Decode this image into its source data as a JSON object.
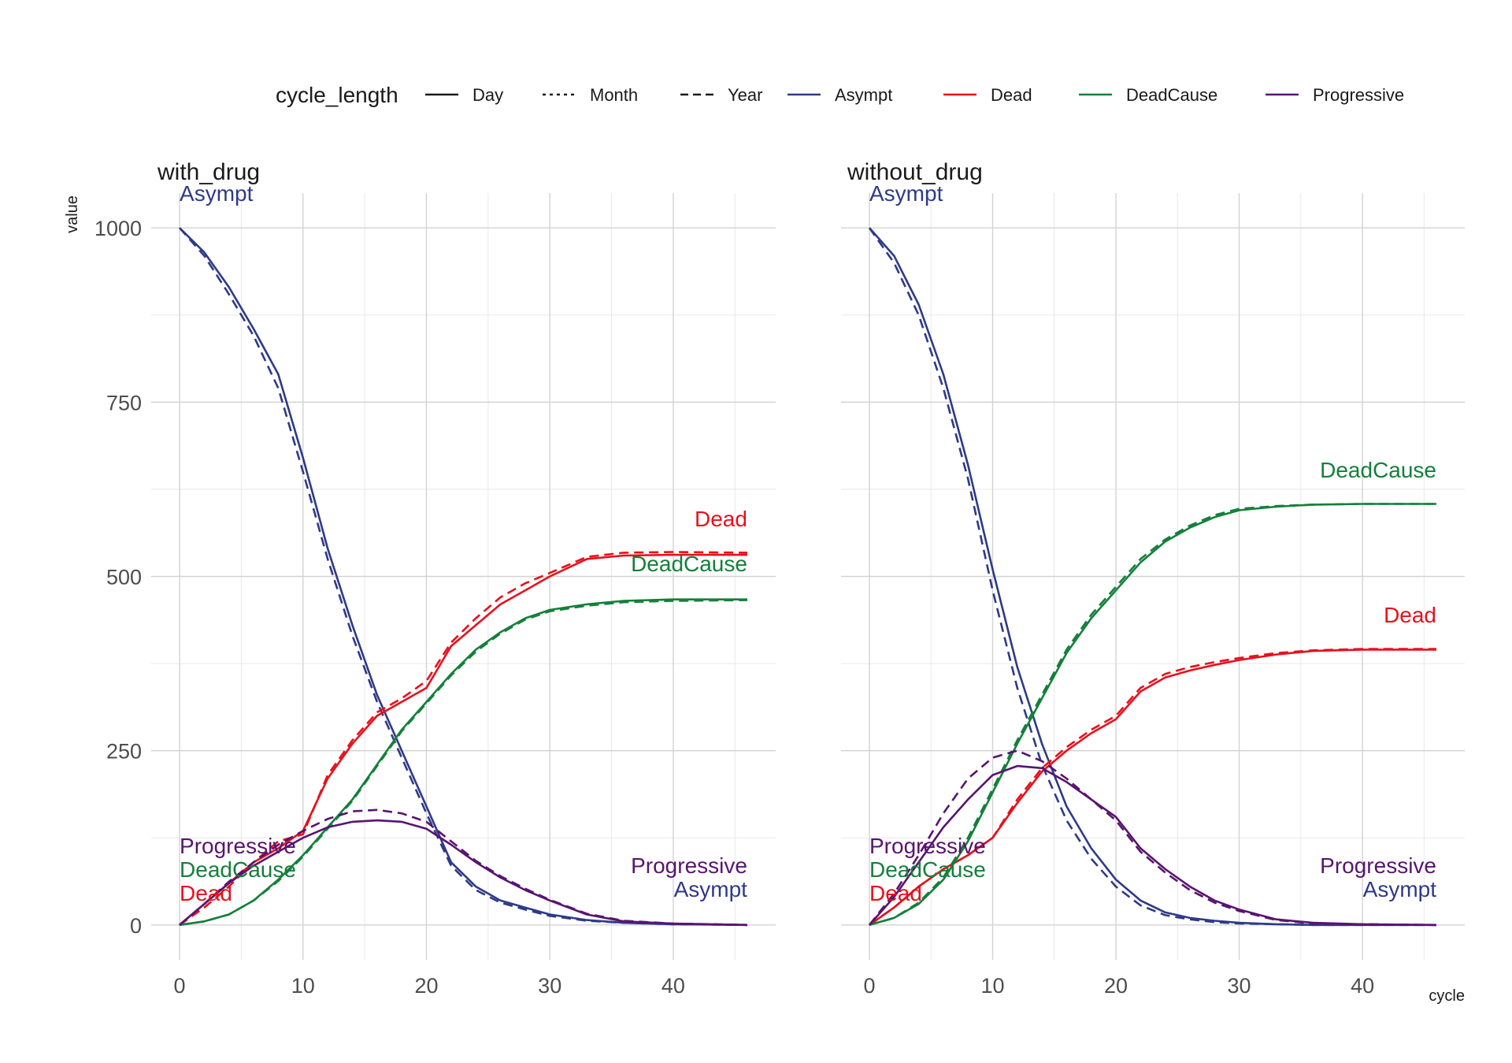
{
  "legend": {
    "linetype_title": "cycle_length",
    "linetypes": [
      {
        "label": "Day",
        "dash": "solid"
      },
      {
        "label": "Month",
        "dash": "dotted"
      },
      {
        "label": "Year",
        "dash": "dashed"
      }
    ],
    "colors": [
      {
        "label": "Asympt",
        "color": "#2e3a87"
      },
      {
        "label": "Dead",
        "color": "#e8101c"
      },
      {
        "label": "DeadCause",
        "color": "#13803a"
      },
      {
        "label": "Progressive",
        "color": "#591470"
      }
    ]
  },
  "axes": {
    "xlabel": "cycle",
    "ylabel": "value",
    "xticks": [
      0,
      10,
      20,
      30,
      40
    ],
    "yticks": [
      0,
      250,
      500,
      750,
      1000
    ],
    "xlim": [
      -2.3,
      48.3
    ],
    "ylim": [
      -50,
      1050
    ]
  },
  "chart_data": [
    {
      "type": "line",
      "title": "with_drug",
      "x": [
        0,
        2,
        4,
        6,
        8,
        10,
        12,
        14,
        16,
        18,
        20,
        22,
        24,
        26,
        28,
        30,
        33,
        36,
        40,
        46
      ],
      "series": [
        {
          "name": "Asympt",
          "linetype": "Day",
          "values": [
            1000,
            965,
            915,
            855,
            790,
            670,
            540,
            430,
            330,
            250,
            170,
            90,
            55,
            35,
            25,
            15,
            7,
            3,
            1,
            0
          ]
        },
        {
          "name": "Asympt",
          "linetype": "Year",
          "values": [
            1000,
            960,
            905,
            845,
            770,
            650,
            525,
            415,
            320,
            240,
            160,
            85,
            50,
            32,
            22,
            13,
            6,
            3,
            1,
            0
          ]
        },
        {
          "name": "Dead",
          "linetype": "Day",
          "values": [
            0,
            30,
            60,
            90,
            110,
            135,
            210,
            260,
            300,
            320,
            340,
            400,
            430,
            460,
            480,
            500,
            525,
            530,
            531,
            531
          ]
        },
        {
          "name": "Dead",
          "linetype": "Year",
          "values": [
            0,
            25,
            55,
            90,
            120,
            130,
            215,
            265,
            305,
            325,
            350,
            405,
            440,
            470,
            490,
            505,
            528,
            534,
            535,
            534
          ]
        },
        {
          "name": "DeadCause",
          "linetype": "Day",
          "values": [
            0,
            5,
            15,
            35,
            65,
            100,
            140,
            180,
            230,
            280,
            320,
            360,
            395,
            420,
            440,
            452,
            460,
            465,
            467,
            467
          ]
        },
        {
          "name": "DeadCause",
          "linetype": "Year",
          "values": [
            0,
            5,
            15,
            35,
            63,
            98,
            138,
            178,
            228,
            278,
            318,
            358,
            392,
            418,
            438,
            450,
            458,
            463,
            465,
            466
          ]
        },
        {
          "name": "Progressive",
          "linetype": "Day",
          "values": [
            0,
            30,
            60,
            85,
            105,
            125,
            140,
            148,
            150,
            148,
            138,
            115,
            90,
            68,
            50,
            35,
            15,
            5,
            2,
            0
          ]
        },
        {
          "name": "Progressive",
          "linetype": "Year",
          "values": [
            0,
            30,
            62,
            90,
            115,
            135,
            152,
            163,
            165,
            160,
            148,
            120,
            92,
            70,
            52,
            36,
            16,
            6,
            2,
            0
          ]
        }
      ],
      "end_labels": [
        {
          "text": "Asympt",
          "color": "#2e3a87"
        },
        {
          "text": "Progressive",
          "color": "#591470"
        },
        {
          "text": "DeadCause",
          "color": "#13803a"
        },
        {
          "text": "Dead",
          "color": "#e8101c"
        }
      ]
    },
    {
      "type": "line",
      "title": "without_drug",
      "x": [
        0,
        2,
        4,
        6,
        8,
        10,
        12,
        14,
        16,
        18,
        20,
        22,
        24,
        26,
        28,
        30,
        33,
        36,
        40,
        46
      ],
      "series": [
        {
          "name": "Asympt",
          "linetype": "Day",
          "values": [
            1000,
            960,
            890,
            790,
            660,
            510,
            370,
            260,
            170,
            110,
            65,
            35,
            18,
            10,
            6,
            3,
            1,
            0,
            0,
            0
          ]
        },
        {
          "name": "Asympt",
          "linetype": "Year",
          "values": [
            1000,
            950,
            875,
            770,
            640,
            480,
            340,
            230,
            150,
            95,
            55,
            28,
            14,
            8,
            4,
            2,
            1,
            0,
            0,
            0
          ]
        },
        {
          "name": "Dead",
          "linetype": "Day",
          "values": [
            0,
            25,
            55,
            80,
            100,
            125,
            175,
            220,
            250,
            275,
            295,
            335,
            355,
            365,
            373,
            380,
            388,
            393,
            395,
            395
          ]
        },
        {
          "name": "Dead",
          "linetype": "Year",
          "values": [
            0,
            25,
            55,
            80,
            100,
            125,
            180,
            225,
            255,
            280,
            300,
            340,
            360,
            370,
            377,
            383,
            390,
            394,
            396,
            396
          ]
        },
        {
          "name": "DeadCause",
          "linetype": "Day",
          "values": [
            0,
            10,
            30,
            65,
            120,
            190,
            260,
            325,
            390,
            440,
            480,
            520,
            550,
            570,
            585,
            595,
            600,
            603,
            604,
            604
          ]
        },
        {
          "name": "DeadCause",
          "linetype": "Year",
          "values": [
            0,
            10,
            32,
            68,
            125,
            195,
            265,
            330,
            395,
            445,
            485,
            525,
            553,
            573,
            588,
            597,
            601,
            603,
            604,
            604
          ]
        },
        {
          "name": "Progressive",
          "linetype": "Day",
          "values": [
            0,
            40,
            90,
            140,
            180,
            215,
            228,
            225,
            205,
            180,
            155,
            110,
            80,
            55,
            35,
            22,
            8,
            3,
            1,
            0
          ]
        },
        {
          "name": "Progressive",
          "linetype": "Year",
          "values": [
            0,
            45,
            100,
            160,
            210,
            240,
            250,
            235,
            210,
            180,
            150,
            105,
            75,
            50,
            32,
            20,
            7,
            2,
            1,
            0
          ]
        }
      ],
      "end_labels": [
        {
          "text": "DeadCause",
          "color": "#13803a"
        },
        {
          "text": "Dead",
          "color": "#e8101c"
        },
        {
          "text": "Progressive",
          "color": "#591470"
        },
        {
          "text": "Asympt",
          "color": "#2e3a87"
        }
      ]
    }
  ]
}
